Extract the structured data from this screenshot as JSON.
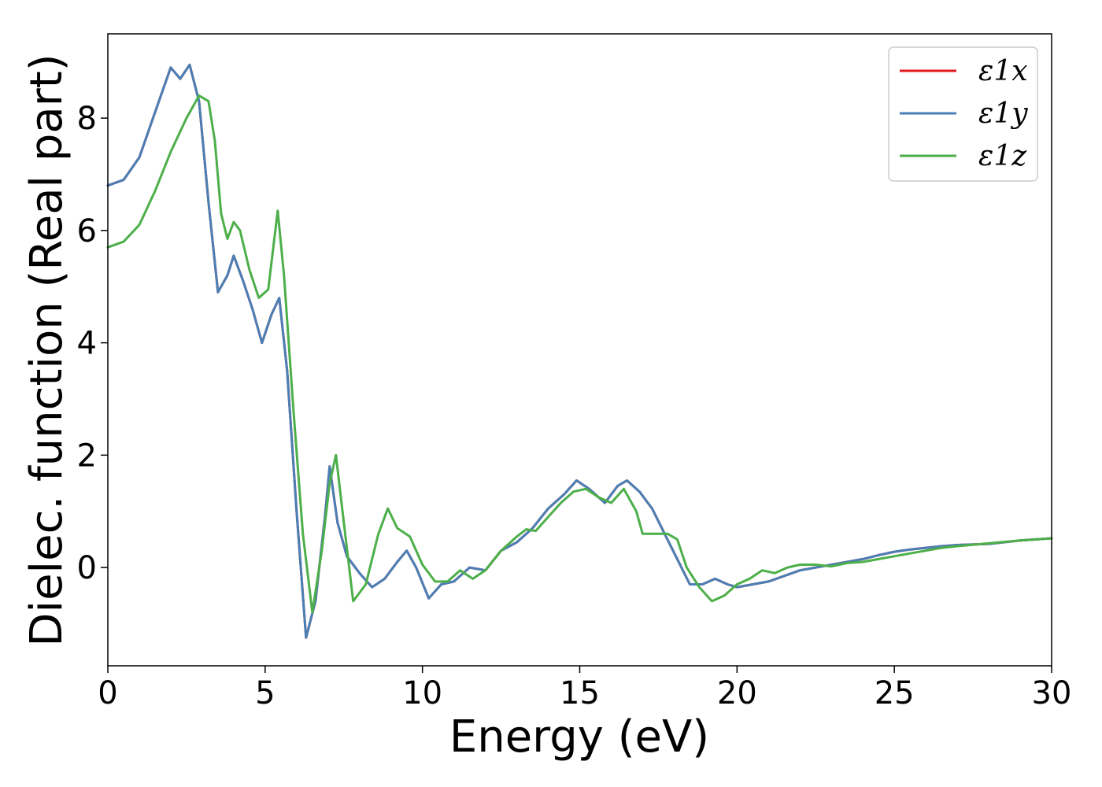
{
  "chart_data": {
    "type": "line",
    "xlabel": "Energy (eV)",
    "ylabel": "Dielec. function (Real part)",
    "xlim": [
      0,
      30
    ],
    "ylim": [
      -1.75,
      9.5
    ],
    "xticks": [
      0,
      5,
      10,
      15,
      20,
      25,
      30
    ],
    "yticks": [
      0,
      2,
      4,
      6,
      8
    ],
    "grid": false,
    "legend_position": "top-right",
    "series": [
      {
        "name": "ε1x",
        "color": "#e41a1c",
        "points": [
          [
            0,
            6.8
          ],
          [
            0.5,
            6.9
          ],
          [
            1.0,
            7.3
          ],
          [
            1.5,
            8.1
          ],
          [
            2.0,
            8.9
          ],
          [
            2.3,
            8.7
          ],
          [
            2.6,
            8.95
          ],
          [
            2.9,
            8.3
          ],
          [
            3.2,
            6.5
          ],
          [
            3.5,
            4.9
          ],
          [
            3.8,
            5.2
          ],
          [
            4.0,
            5.55
          ],
          [
            4.3,
            5.1
          ],
          [
            4.6,
            4.6
          ],
          [
            4.9,
            4.0
          ],
          [
            5.2,
            4.5
          ],
          [
            5.45,
            4.8
          ],
          [
            5.7,
            3.5
          ],
          [
            6.0,
            1.0
          ],
          [
            6.3,
            -1.25
          ],
          [
            6.6,
            -0.6
          ],
          [
            6.9,
            0.9
          ],
          [
            7.05,
            1.8
          ],
          [
            7.3,
            0.8
          ],
          [
            7.6,
            0.2
          ],
          [
            8.0,
            -0.1
          ],
          [
            8.4,
            -0.35
          ],
          [
            8.8,
            -0.2
          ],
          [
            9.2,
            0.1
          ],
          [
            9.5,
            0.3
          ],
          [
            9.8,
            0.0
          ],
          [
            10.2,
            -0.55
          ],
          [
            10.6,
            -0.3
          ],
          [
            11.0,
            -0.25
          ],
          [
            11.5,
            0.0
          ],
          [
            12.0,
            -0.05
          ],
          [
            12.5,
            0.3
          ],
          [
            13.0,
            0.45
          ],
          [
            13.5,
            0.7
          ],
          [
            14.0,
            1.05
          ],
          [
            14.5,
            1.3
          ],
          [
            14.9,
            1.55
          ],
          [
            15.3,
            1.4
          ],
          [
            15.8,
            1.15
          ],
          [
            16.2,
            1.45
          ],
          [
            16.5,
            1.55
          ],
          [
            16.9,
            1.35
          ],
          [
            17.3,
            1.05
          ],
          [
            17.7,
            0.6
          ],
          [
            18.1,
            0.15
          ],
          [
            18.5,
            -0.3
          ],
          [
            18.9,
            -0.3
          ],
          [
            19.3,
            -0.2
          ],
          [
            19.7,
            -0.3
          ],
          [
            20.0,
            -0.35
          ],
          [
            20.5,
            -0.3
          ],
          [
            21.0,
            -0.25
          ],
          [
            21.5,
            -0.15
          ],
          [
            22.0,
            -0.05
          ],
          [
            22.5,
            0.0
          ],
          [
            23.0,
            0.05
          ],
          [
            23.5,
            0.1
          ],
          [
            24.0,
            0.15
          ],
          [
            24.5,
            0.22
          ],
          [
            25.0,
            0.28
          ],
          [
            25.5,
            0.32
          ],
          [
            26.0,
            0.35
          ],
          [
            26.5,
            0.38
          ],
          [
            27.0,
            0.4
          ],
          [
            28.0,
            0.42
          ],
          [
            29.0,
            0.48
          ],
          [
            30.0,
            0.52
          ]
        ]
      },
      {
        "name": "ε1y",
        "color": "#4a7fb5",
        "points": [
          [
            0,
            6.8
          ],
          [
            0.5,
            6.9
          ],
          [
            1.0,
            7.3
          ],
          [
            1.5,
            8.1
          ],
          [
            2.0,
            8.9
          ],
          [
            2.3,
            8.7
          ],
          [
            2.6,
            8.95
          ],
          [
            2.9,
            8.3
          ],
          [
            3.2,
            6.5
          ],
          [
            3.5,
            4.9
          ],
          [
            3.8,
            5.2
          ],
          [
            4.0,
            5.55
          ],
          [
            4.3,
            5.1
          ],
          [
            4.6,
            4.6
          ],
          [
            4.9,
            4.0
          ],
          [
            5.2,
            4.5
          ],
          [
            5.45,
            4.8
          ],
          [
            5.7,
            3.5
          ],
          [
            6.0,
            1.0
          ],
          [
            6.3,
            -1.25
          ],
          [
            6.6,
            -0.6
          ],
          [
            6.9,
            0.9
          ],
          [
            7.05,
            1.8
          ],
          [
            7.3,
            0.8
          ],
          [
            7.6,
            0.2
          ],
          [
            8.0,
            -0.1
          ],
          [
            8.4,
            -0.35
          ],
          [
            8.8,
            -0.2
          ],
          [
            9.2,
            0.1
          ],
          [
            9.5,
            0.3
          ],
          [
            9.8,
            0.0
          ],
          [
            10.2,
            -0.55
          ],
          [
            10.6,
            -0.3
          ],
          [
            11.0,
            -0.25
          ],
          [
            11.5,
            0.0
          ],
          [
            12.0,
            -0.05
          ],
          [
            12.5,
            0.3
          ],
          [
            13.0,
            0.45
          ],
          [
            13.5,
            0.7
          ],
          [
            14.0,
            1.05
          ],
          [
            14.5,
            1.3
          ],
          [
            14.9,
            1.55
          ],
          [
            15.3,
            1.4
          ],
          [
            15.8,
            1.15
          ],
          [
            16.2,
            1.45
          ],
          [
            16.5,
            1.55
          ],
          [
            16.9,
            1.35
          ],
          [
            17.3,
            1.05
          ],
          [
            17.7,
            0.6
          ],
          [
            18.1,
            0.15
          ],
          [
            18.5,
            -0.3
          ],
          [
            18.9,
            -0.3
          ],
          [
            19.3,
            -0.2
          ],
          [
            19.7,
            -0.3
          ],
          [
            20.0,
            -0.35
          ],
          [
            20.5,
            -0.3
          ],
          [
            21.0,
            -0.25
          ],
          [
            21.5,
            -0.15
          ],
          [
            22.0,
            -0.05
          ],
          [
            22.5,
            0.0
          ],
          [
            23.0,
            0.05
          ],
          [
            23.5,
            0.1
          ],
          [
            24.0,
            0.15
          ],
          [
            24.5,
            0.22
          ],
          [
            25.0,
            0.28
          ],
          [
            25.5,
            0.32
          ],
          [
            26.0,
            0.35
          ],
          [
            26.5,
            0.38
          ],
          [
            27.0,
            0.4
          ],
          [
            28.0,
            0.42
          ],
          [
            29.0,
            0.48
          ],
          [
            30.0,
            0.52
          ]
        ]
      },
      {
        "name": "ε1z",
        "color": "#4daf4a",
        "points": [
          [
            0,
            5.7
          ],
          [
            0.5,
            5.8
          ],
          [
            1.0,
            6.1
          ],
          [
            1.5,
            6.7
          ],
          [
            2.0,
            7.4
          ],
          [
            2.5,
            8.0
          ],
          [
            2.9,
            8.4
          ],
          [
            3.2,
            8.3
          ],
          [
            3.4,
            7.6
          ],
          [
            3.6,
            6.3
          ],
          [
            3.8,
            5.85
          ],
          [
            4.0,
            6.15
          ],
          [
            4.2,
            6.0
          ],
          [
            4.5,
            5.3
          ],
          [
            4.8,
            4.8
          ],
          [
            5.1,
            4.95
          ],
          [
            5.4,
            6.35
          ],
          [
            5.6,
            5.2
          ],
          [
            5.9,
            2.8
          ],
          [
            6.2,
            0.6
          ],
          [
            6.5,
            -0.8
          ],
          [
            6.8,
            0.3
          ],
          [
            7.05,
            1.5
          ],
          [
            7.25,
            2.0
          ],
          [
            7.5,
            0.8
          ],
          [
            7.8,
            -0.6
          ],
          [
            8.2,
            -0.3
          ],
          [
            8.6,
            0.6
          ],
          [
            8.9,
            1.05
          ],
          [
            9.2,
            0.7
          ],
          [
            9.6,
            0.55
          ],
          [
            10.0,
            0.05
          ],
          [
            10.4,
            -0.25
          ],
          [
            10.8,
            -0.25
          ],
          [
            11.2,
            -0.05
          ],
          [
            11.6,
            -0.2
          ],
          [
            12.0,
            -0.05
          ],
          [
            12.5,
            0.3
          ],
          [
            13.0,
            0.55
          ],
          [
            13.3,
            0.68
          ],
          [
            13.6,
            0.65
          ],
          [
            14.0,
            0.9
          ],
          [
            14.4,
            1.15
          ],
          [
            14.8,
            1.35
          ],
          [
            15.2,
            1.4
          ],
          [
            15.6,
            1.25
          ],
          [
            16.0,
            1.15
          ],
          [
            16.4,
            1.4
          ],
          [
            16.8,
            1.0
          ],
          [
            17.0,
            0.6
          ],
          [
            17.4,
            0.6
          ],
          [
            17.8,
            0.6
          ],
          [
            18.1,
            0.5
          ],
          [
            18.4,
            0.0
          ],
          [
            18.8,
            -0.35
          ],
          [
            19.2,
            -0.6
          ],
          [
            19.6,
            -0.5
          ],
          [
            20.0,
            -0.3
          ],
          [
            20.4,
            -0.2
          ],
          [
            20.8,
            -0.05
          ],
          [
            21.2,
            -0.1
          ],
          [
            21.6,
            0.0
          ],
          [
            22.0,
            0.05
          ],
          [
            22.5,
            0.05
          ],
          [
            23.0,
            0.02
          ],
          [
            23.5,
            0.08
          ],
          [
            24.0,
            0.1
          ],
          [
            24.5,
            0.15
          ],
          [
            25.0,
            0.2
          ],
          [
            25.5,
            0.25
          ],
          [
            26.0,
            0.3
          ],
          [
            26.5,
            0.35
          ],
          [
            27.0,
            0.38
          ],
          [
            28.0,
            0.43
          ],
          [
            29.0,
            0.48
          ],
          [
            30.0,
            0.52
          ]
        ]
      }
    ]
  }
}
